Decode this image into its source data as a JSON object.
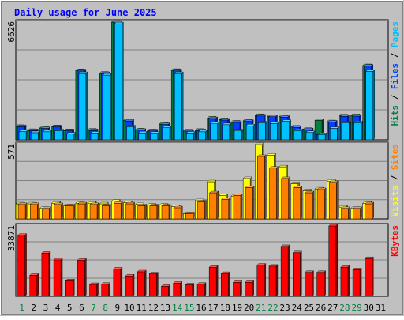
{
  "chart_data": {
    "type": "bar",
    "title": "Daily usage for June 2025",
    "categories": [
      "1",
      "2",
      "3",
      "4",
      "5",
      "6",
      "7",
      "8",
      "9",
      "10",
      "11",
      "12",
      "13",
      "14",
      "15",
      "16",
      "17",
      "18",
      "19",
      "20",
      "21",
      "22",
      "23",
      "24",
      "25",
      "26",
      "27",
      "28",
      "29",
      "30",
      "31"
    ],
    "weekend_days": [
      "1",
      "7",
      "8",
      "14",
      "15",
      "21",
      "22",
      "28",
      "29"
    ],
    "panels": [
      {
        "id": "hits-files-pages",
        "ymax_label": "6626",
        "ylim": [
          0,
          6626
        ],
        "legend": [
          {
            "label": "Pages",
            "color": "#00c0ff"
          },
          {
            "label": "Files",
            "color": "#0040ff"
          },
          {
            "label": "Hits",
            "color": "#008040"
          }
        ],
        "series": [
          {
            "name": "Hits",
            "color": "#008040",
            "values": [
              760,
              530,
              670,
              740,
              520,
              3900,
              550,
              3750,
              6626,
              1090,
              560,
              510,
              890,
              3910,
              500,
              540,
              1230,
              1140,
              1000,
              1070,
              1370,
              1320,
              1300,
              720,
              590,
              1090,
              1020,
              1350,
              1360,
              4180,
              0
            ]
          },
          {
            "name": "Files",
            "color": "#0040ff",
            "values": [
              740,
              520,
              640,
              730,
              510,
              3880,
              520,
              3730,
              6590,
              1060,
              540,
              500,
              860,
              3880,
              490,
              520,
              1200,
              1110,
              980,
              1040,
              1340,
              1300,
              1270,
              700,
              570,
              300,
              1000,
              1320,
              1330,
              4150,
              0
            ]
          },
          {
            "name": "Pages",
            "color": "#00c0ff",
            "values": [
              460,
              400,
              450,
              510,
              330,
              3730,
              380,
              3640,
              6530,
              730,
              390,
              370,
              680,
              3730,
              380,
              450,
              900,
              850,
              500,
              790,
              950,
              920,
              1040,
              520,
              410,
              300,
              640,
              950,
              960,
              3850,
              0
            ]
          }
        ]
      },
      {
        "id": "visits-sites",
        "ymax_label": "571",
        "ylim": [
          0,
          571
        ],
        "legend": [
          {
            "label": "Sites",
            "color": "#ff8000"
          },
          {
            "label": "Visits",
            "color": "#ffff00"
          }
        ],
        "series": [
          {
            "name": "Visits",
            "color": "#ffff00",
            "values": [
              115,
              115,
              80,
              120,
              100,
              120,
              120,
              115,
              135,
              125,
              110,
              105,
              105,
              95,
              40,
              140,
              285,
              180,
              175,
              310,
              571,
              490,
              400,
              270,
              215,
              230,
              290,
              90,
              80,
              120,
              0
            ]
          },
          {
            "name": "Sites",
            "color": "#ff8000",
            "values": [
              110,
              110,
              80,
              110,
              100,
              115,
              110,
              100,
              120,
              115,
              100,
              100,
              100,
              85,
              40,
              130,
              200,
              150,
              180,
              240,
              480,
              390,
              310,
              240,
              200,
              225,
              280,
              80,
              80,
              115,
              0
            ]
          }
        ]
      },
      {
        "id": "kbytes",
        "ymax_label": "33871",
        "ylim": [
          0,
          33871
        ],
        "legend": [
          {
            "label": "KBytes",
            "color": "#ff0000"
          }
        ],
        "series": [
          {
            "name": "KBytes",
            "color": "#ff0000",
            "values": [
              29400,
              10100,
              20800,
              17500,
              7500,
              17400,
              5700,
              5800,
              13200,
              9800,
              11800,
              10800,
              4800,
              6300,
              5500,
              5800,
              14000,
              11000,
              6700,
              6700,
              15000,
              14500,
              24000,
              21000,
              11500,
              11500,
              33871,
              14000,
              12800,
              18200,
              0
            ]
          }
        ]
      }
    ]
  }
}
